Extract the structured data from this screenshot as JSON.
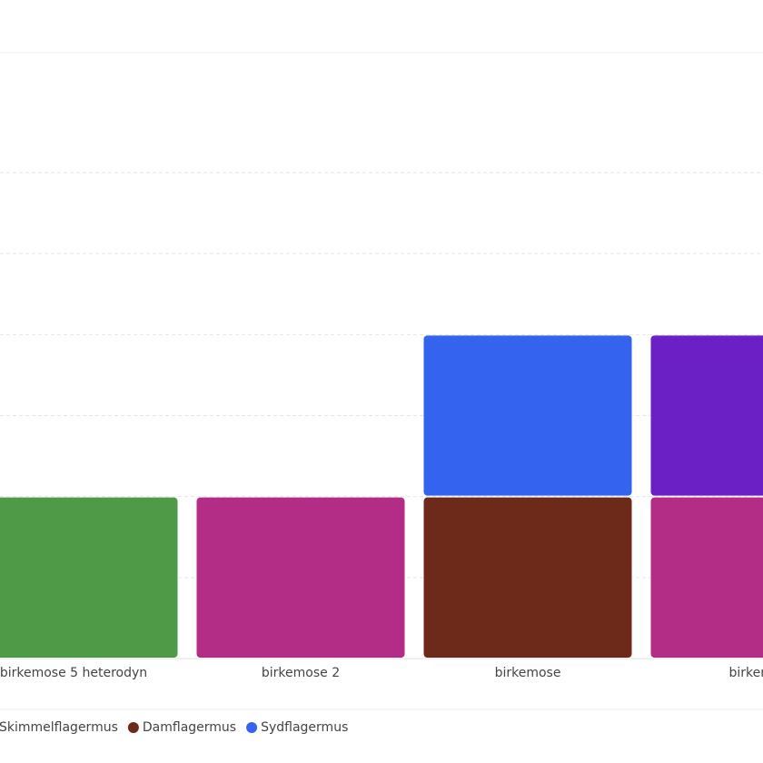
{
  "chart_data": {
    "type": "stacked-bar",
    "categories": [
      "birkemose 5 heterodyn",
      "birkemose 2",
      "birkemose",
      "birkemo"
    ],
    "series": [
      {
        "color": "#4f9a47",
        "values": [
          1,
          null,
          null,
          null
        ]
      },
      {
        "color": "#b32d86",
        "values": [
          null,
          1,
          null,
          1
        ]
      },
      {
        "name": "Skimmelflagermus",
        "color": "#6a20c4",
        "values": [
          null,
          null,
          null,
          1
        ]
      },
      {
        "name": "Damflagermus",
        "color": "#6d2a1a",
        "values": [
          null,
          null,
          1,
          null
        ]
      },
      {
        "name": "Sydflagermus",
        "color": "#3363ef",
        "values": [
          null,
          null,
          1,
          null
        ]
      }
    ],
    "ylim": [
      0,
      3.74
    ],
    "yticks": [
      0.5,
      1,
      1.5,
      2,
      2.5,
      3
    ],
    "grid": true
  }
}
